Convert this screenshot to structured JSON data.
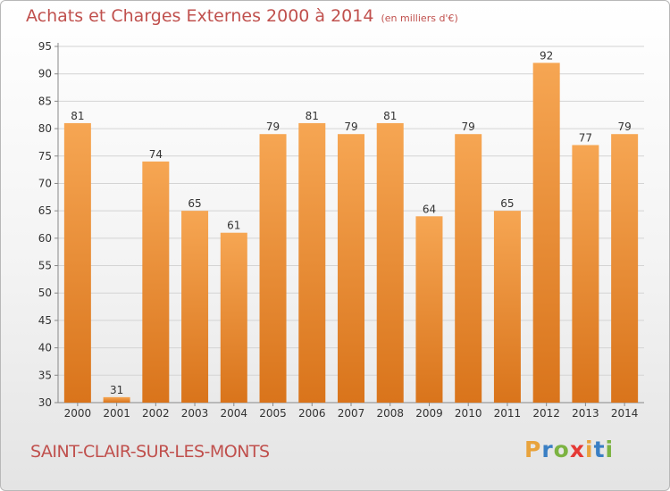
{
  "chart_title": "Achats et Charges Externes 2000 à 2014",
  "chart_unit": "(en milliers d'€)",
  "commune": "SAINT-CLAIR-SUR-LES-MONTS",
  "logo": {
    "letters": [
      "P",
      "r",
      "o",
      "x",
      "i",
      "t",
      "i"
    ],
    "colors": [
      "#e8a33d",
      "#3a7fc4",
      "#7cb342",
      "#e53935",
      "#e8a33d",
      "#3a7fc4",
      "#7cb342"
    ]
  },
  "colors": {
    "bar_top": "#f6a653",
    "bar_bottom": "#d9741b",
    "title": "#c0504d",
    "grid": "#d4d4d4",
    "text": "#333333"
  },
  "chart_data": {
    "type": "bar",
    "categories": [
      "2000",
      "2001",
      "2002",
      "2003",
      "2004",
      "2005",
      "2006",
      "2007",
      "2008",
      "2009",
      "2010",
      "2011",
      "2012",
      "2013",
      "2014"
    ],
    "values": [
      81,
      31,
      74,
      65,
      61,
      79,
      81,
      79,
      81,
      64,
      79,
      65,
      92,
      77,
      79
    ],
    "ylim": [
      30,
      95
    ],
    "yticks": [
      30,
      35,
      40,
      45,
      50,
      55,
      60,
      65,
      70,
      75,
      80,
      85,
      90,
      95
    ],
    "grid": true,
    "data_labels": true
  }
}
